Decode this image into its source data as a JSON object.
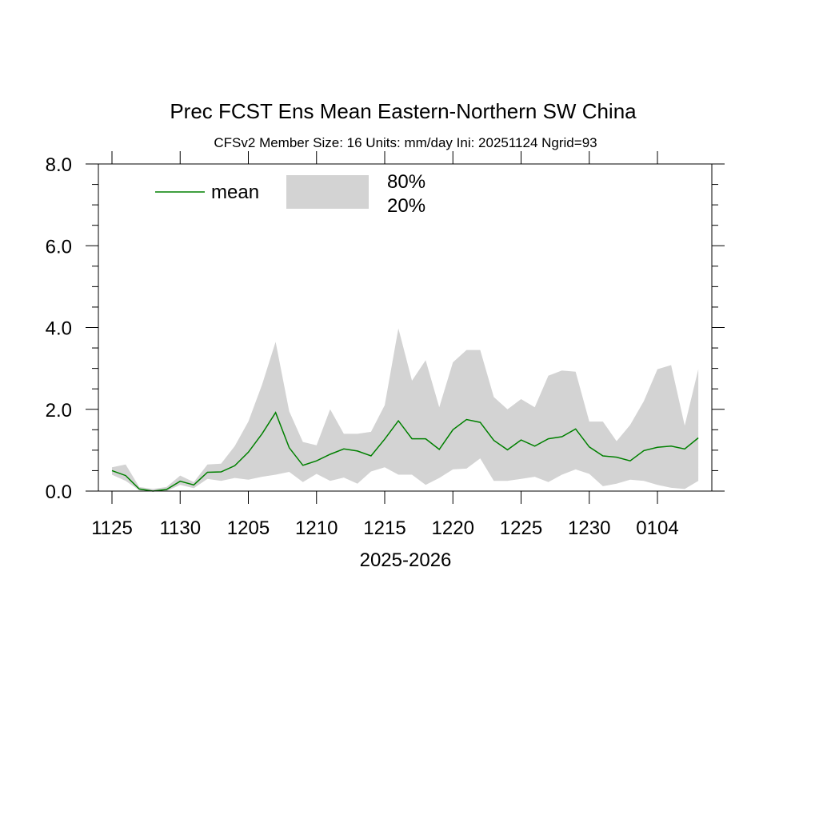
{
  "chart_data": {
    "type": "area",
    "title": "Prec FCST Ens Mean Eastern-Northern SW China",
    "subtitle": "CFSv2  Member Size: 16  Units: mm/day  Ini: 20251124  Ngrid=93",
    "xlabel": "2025-2026",
    "ylabel": "",
    "x_tick_labels": [
      "1125",
      "1130",
      "1205",
      "1210",
      "1215",
      "1220",
      "1225",
      "1230",
      "0104"
    ],
    "y_tick_labels": [
      "0.0",
      "2.0",
      "4.0",
      "6.0",
      "8.0"
    ],
    "ylim": [
      0,
      8
    ],
    "x_dates": [
      "1125",
      "1126",
      "1127",
      "1128",
      "1129",
      "1130",
      "1201",
      "1202",
      "1203",
      "1204",
      "1205",
      "1206",
      "1207",
      "1208",
      "1209",
      "1210",
      "1211",
      "1212",
      "1213",
      "1214",
      "1215",
      "1216",
      "1217",
      "1218",
      "1219",
      "1220",
      "1221",
      "1222",
      "1223",
      "1224",
      "1225",
      "1226",
      "1227",
      "1228",
      "1229",
      "1230",
      "1231",
      "0101",
      "0102",
      "0103",
      "0104",
      "0105",
      "0106",
      "0107"
    ],
    "series": [
      {
        "name": "mean",
        "color": "#008000",
        "values": [
          0.5,
          0.38,
          0.05,
          0.0,
          0.04,
          0.24,
          0.15,
          0.46,
          0.47,
          0.62,
          0.95,
          1.4,
          1.92,
          1.06,
          0.63,
          0.74,
          0.9,
          1.03,
          0.98,
          0.86,
          1.27,
          1.72,
          1.28,
          1.28,
          1.02,
          1.5,
          1.75,
          1.68,
          1.24,
          1.01,
          1.25,
          1.1,
          1.28,
          1.33,
          1.52,
          1.08,
          0.86,
          0.83,
          0.74,
          0.99,
          1.07,
          1.1,
          1.03,
          1.3
        ]
      }
    ],
    "band": {
      "upper_label": "80%",
      "lower_label": "20%",
      "color": "#d3d3d3",
      "upper": [
        0.58,
        0.65,
        0.1,
        0.05,
        0.1,
        0.38,
        0.22,
        0.65,
        0.67,
        1.1,
        1.7,
        2.6,
        3.65,
        1.95,
        1.2,
        1.12,
        2.0,
        1.4,
        1.4,
        1.45,
        2.1,
        3.98,
        2.7,
        3.2,
        2.05,
        3.15,
        3.45,
        3.45,
        2.3,
        2.0,
        2.25,
        2.05,
        2.82,
        2.95,
        2.92,
        1.7,
        1.7,
        1.22,
        1.62,
        2.2,
        2.98,
        3.08,
        1.6,
        2.98
      ],
      "lower": [
        0.4,
        0.25,
        0.02,
        0.0,
        0.0,
        0.15,
        0.07,
        0.3,
        0.25,
        0.32,
        0.28,
        0.35,
        0.4,
        0.47,
        0.22,
        0.42,
        0.25,
        0.33,
        0.18,
        0.48,
        0.58,
        0.4,
        0.4,
        0.15,
        0.32,
        0.53,
        0.55,
        0.8,
        0.25,
        0.25,
        0.3,
        0.35,
        0.22,
        0.4,
        0.53,
        0.42,
        0.12,
        0.18,
        0.28,
        0.25,
        0.15,
        0.08,
        0.05,
        0.25
      ]
    },
    "legend": {
      "placement": "top-left",
      "mean_label": "mean"
    },
    "grid": false
  }
}
